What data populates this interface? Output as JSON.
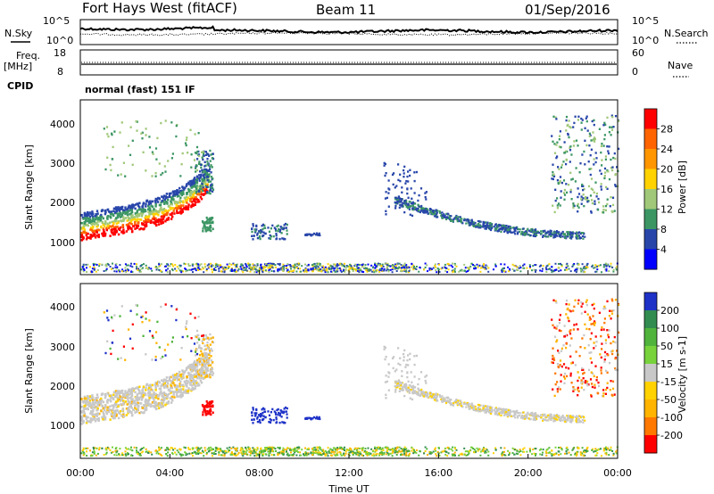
{
  "header": {
    "title": "Fort Hays West (fitACF)",
    "beam": "Beam 11",
    "date": "01/Sep/2016"
  },
  "top_labels": {
    "nsky": "N.Sky",
    "freq": "Freq.",
    "freq_unit": "[MHz]",
    "cpid": "CPID",
    "nsearch": "N.Search",
    "nave": "Nave",
    "mode": "normal (fast) 151 IF"
  },
  "chart_data": [
    {
      "type": "line",
      "name_hint": "noise panel",
      "left_ticks": [
        "10^5",
        "10^0"
      ],
      "right_ticks": [
        "10^5",
        "10^0"
      ],
      "left_label": "N.Sky",
      "right_label": "N.Search"
    },
    {
      "type": "line",
      "name_hint": "frequency panel",
      "left_ticks": [
        "18",
        "8"
      ],
      "right_ticks": [
        "60",
        "0"
      ],
      "left_label": "Freq. [MHz]",
      "right_label": "Nave"
    },
    {
      "type": "heatmap",
      "name_hint": "power panel",
      "ylabel": "Slant Range [km]",
      "ylim": [
        180,
        4600
      ],
      "yticks": [
        "1000",
        "2000",
        "3000",
        "4000"
      ],
      "colorbar_label": "Power [dB]",
      "colorbar_ticks": [
        "28",
        "24",
        "20",
        "16",
        "12",
        "8",
        "4"
      ],
      "colorbar_colors": [
        "#ff0000",
        "#ff6400",
        "#ff9600",
        "#ffd200",
        "#a0c878",
        "#3c9664",
        "#2846aa",
        "#0000ff"
      ]
    },
    {
      "type": "heatmap",
      "name_hint": "velocity panel",
      "ylabel": "Slant Range [km]",
      "ylim": [
        180,
        4600
      ],
      "yticks": [
        "1000",
        "2000",
        "3000",
        "4000"
      ],
      "xlabel": "Time UT",
      "xticks": [
        "00:00",
        "04:00",
        "08:00",
        "12:00",
        "16:00",
        "20:00",
        "00:00"
      ],
      "colorbar_label": "Velocity [m s-1]",
      "colorbar_ticks": [
        "200",
        "100",
        "50",
        "15",
        "-15",
        "-50",
        "-100",
        "-200"
      ],
      "colorbar_colors": [
        "#1e32c8",
        "#328c50",
        "#50b43c",
        "#78d23c",
        "#c8c8c8",
        "#ffd200",
        "#ffb400",
        "#ff7800",
        "#ff0000"
      ]
    }
  ]
}
